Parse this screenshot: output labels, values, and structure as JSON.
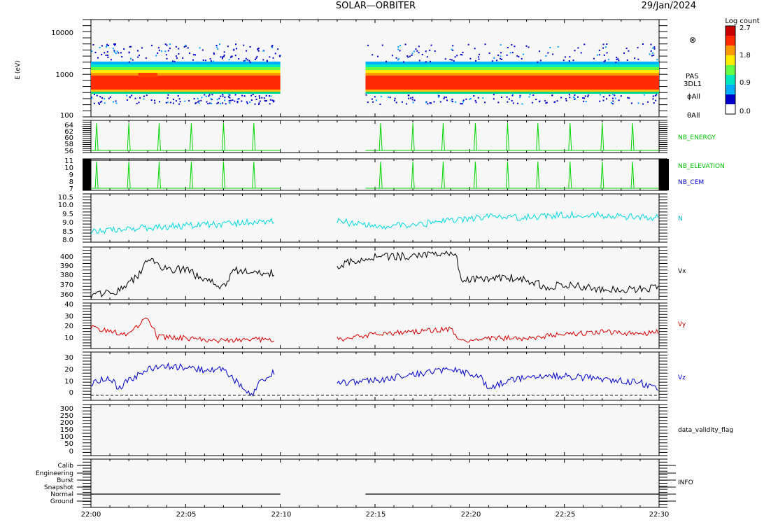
{
  "header": {
    "title": "SOLAR—ORBITER",
    "date": "29/Jan/2024"
  },
  "colors": {
    "axis": "#000000",
    "panel_bg": "#f7f7f7",
    "green_series": "#00d400",
    "cyan_series": "#00d8e0",
    "black_series": "#000000",
    "red_series": "#d40000",
    "blue_series": "#0000c8",
    "side_label_green": "#00c000",
    "side_label_blue": "#0000c8",
    "side_label_cyan": "#00b8c8",
    "side_label_red": "#c80000"
  },
  "time_axis": {
    "ticks": [
      "22:00",
      "22:05",
      "22:10",
      "22:15",
      "22:20",
      "22:25",
      "22:30"
    ],
    "start_min": 0,
    "end_min": 30,
    "gap_start_min": 10,
    "gap_end_min": 14.5
  },
  "spectrogram": {
    "ylabel": "E (eV)",
    "yticks": [
      "10000",
      "1000",
      "100"
    ],
    "side_labels": [
      "PAS",
      "3DL1",
      "ϕAll",
      "θAll"
    ],
    "symbol": "⊗",
    "colorbar": {
      "title": "Log count",
      "ticks": [
        "2.7",
        "1.8",
        "0.9",
        "0.0"
      ]
    }
  },
  "chart_data": [
    {
      "type": "line",
      "name": "NB_ENERGY",
      "yticks": [
        "64",
        "62",
        "60",
        "58",
        "56"
      ],
      "ylim": [
        56,
        64
      ],
      "series_color": "green_series",
      "spike_times": [
        0.3,
        2.0,
        3.6,
        5.3,
        7.0,
        8.6,
        15.3,
        17.0,
        18.6,
        20.3,
        22.0,
        23.6,
        25.3,
        27.0,
        28.6
      ]
    },
    {
      "type": "line",
      "name": "NB_ELEVATION",
      "yticks": [
        "11",
        "10",
        "9",
        "8",
        "7"
      ],
      "ylim": [
        7,
        11
      ],
      "series_color": "green_series",
      "second_label": "NB_CEM",
      "spike_times": [
        0.3,
        2.0,
        3.6,
        5.3,
        7.0,
        8.6,
        15.3,
        17.0,
        18.6,
        20.3,
        22.0,
        23.6,
        25.3,
        27.0,
        28.6
      ]
    },
    {
      "type": "line",
      "name": "N",
      "yticks": [
        "10.5",
        "10.0",
        "9.5",
        "9.0",
        "8.5",
        "8.0"
      ],
      "ylim": [
        8.0,
        10.5
      ],
      "series_color": "cyan_series",
      "profile": [
        [
          0,
          8.6
        ],
        [
          2,
          8.7
        ],
        [
          4,
          8.8
        ],
        [
          6,
          8.9
        ],
        [
          8,
          9.0
        ],
        [
          10,
          9.1
        ],
        [
          13,
          9.1
        ],
        [
          15,
          8.8
        ],
        [
          17,
          8.9
        ],
        [
          19,
          9.1
        ],
        [
          21,
          9.3
        ],
        [
          23,
          9.3
        ],
        [
          25,
          9.4
        ],
        [
          27,
          9.4
        ],
        [
          29,
          9.3
        ],
        [
          30,
          9.3
        ]
      ]
    },
    {
      "type": "line",
      "name": "Vx",
      "yticks": [
        "400",
        "390",
        "380",
        "370",
        "360"
      ],
      "ylim": [
        360,
        400
      ],
      "series_color": "black_series",
      "profile": [
        [
          0,
          363
        ],
        [
          1.5,
          367
        ],
        [
          2.5,
          378
        ],
        [
          3,
          392
        ],
        [
          4,
          383
        ],
        [
          5,
          383
        ],
        [
          6,
          375
        ],
        [
          7,
          370
        ],
        [
          7.5,
          382
        ],
        [
          9,
          380
        ],
        [
          10,
          380
        ],
        [
          13,
          385
        ],
        [
          14,
          390
        ],
        [
          15,
          393
        ],
        [
          17,
          393
        ],
        [
          19,
          395
        ],
        [
          19.3,
          395
        ],
        [
          19.5,
          376
        ],
        [
          21,
          376
        ],
        [
          22,
          377
        ],
        [
          23,
          375
        ],
        [
          24,
          370
        ],
        [
          25,
          371
        ],
        [
          27,
          368
        ],
        [
          29,
          368
        ],
        [
          30,
          369
        ]
      ]
    },
    {
      "type": "line",
      "name": "Vy",
      "yticks": [
        "40",
        "30",
        "20",
        "10"
      ],
      "ylim": [
        5,
        40
      ],
      "series_color": "red_series",
      "profile": [
        [
          0,
          22
        ],
        [
          1,
          18
        ],
        [
          2,
          16
        ],
        [
          3,
          30
        ],
        [
          3.5,
          14
        ],
        [
          5,
          13
        ],
        [
          7,
          11
        ],
        [
          9,
          12
        ],
        [
          10,
          12
        ],
        [
          13,
          12
        ],
        [
          14,
          14
        ],
        [
          15,
          16
        ],
        [
          17,
          18
        ],
        [
          19,
          20
        ],
        [
          19.5,
          10
        ],
        [
          21,
          13
        ],
        [
          23,
          13
        ],
        [
          25,
          16
        ],
        [
          27,
          18
        ],
        [
          29,
          16
        ],
        [
          30,
          18
        ]
      ]
    },
    {
      "type": "line",
      "name": "Vz",
      "yticks": [
        "30",
        "20",
        "10",
        "0"
      ],
      "ylim": [
        -4,
        34
      ],
      "series_color": "blue_series",
      "profile": [
        [
          0,
          10
        ],
        [
          1,
          13
        ],
        [
          1.5,
          5
        ],
        [
          2,
          12
        ],
        [
          3,
          20
        ],
        [
          4,
          23
        ],
        [
          5,
          22
        ],
        [
          6,
          20
        ],
        [
          7,
          20
        ],
        [
          7.5,
          12
        ],
        [
          8,
          8
        ],
        [
          8.5,
          0
        ],
        [
          9,
          12
        ],
        [
          9.7,
          18
        ],
        [
          13,
          10
        ],
        [
          14,
          10
        ],
        [
          15,
          12
        ],
        [
          17,
          16
        ],
        [
          19,
          20
        ],
        [
          19.5,
          18
        ],
        [
          20.5,
          16
        ],
        [
          21,
          5
        ],
        [
          22,
          12
        ],
        [
          23,
          14
        ],
        [
          25,
          15
        ],
        [
          27,
          13
        ],
        [
          29,
          10
        ],
        [
          30,
          4
        ]
      ]
    },
    {
      "type": "line",
      "name": "data_validity_flag",
      "yticks": [
        "300",
        "250",
        "200",
        "150",
        "100",
        "50",
        "0"
      ],
      "ylim": [
        0,
        300
      ],
      "series_color": "black_series",
      "profile": []
    }
  ],
  "info_panel": {
    "name": "INFO",
    "rows": [
      "Calib",
      "Engineering",
      "Burst",
      "Snapshot",
      "Normal",
      "Ground"
    ],
    "active_row": "Normal"
  }
}
